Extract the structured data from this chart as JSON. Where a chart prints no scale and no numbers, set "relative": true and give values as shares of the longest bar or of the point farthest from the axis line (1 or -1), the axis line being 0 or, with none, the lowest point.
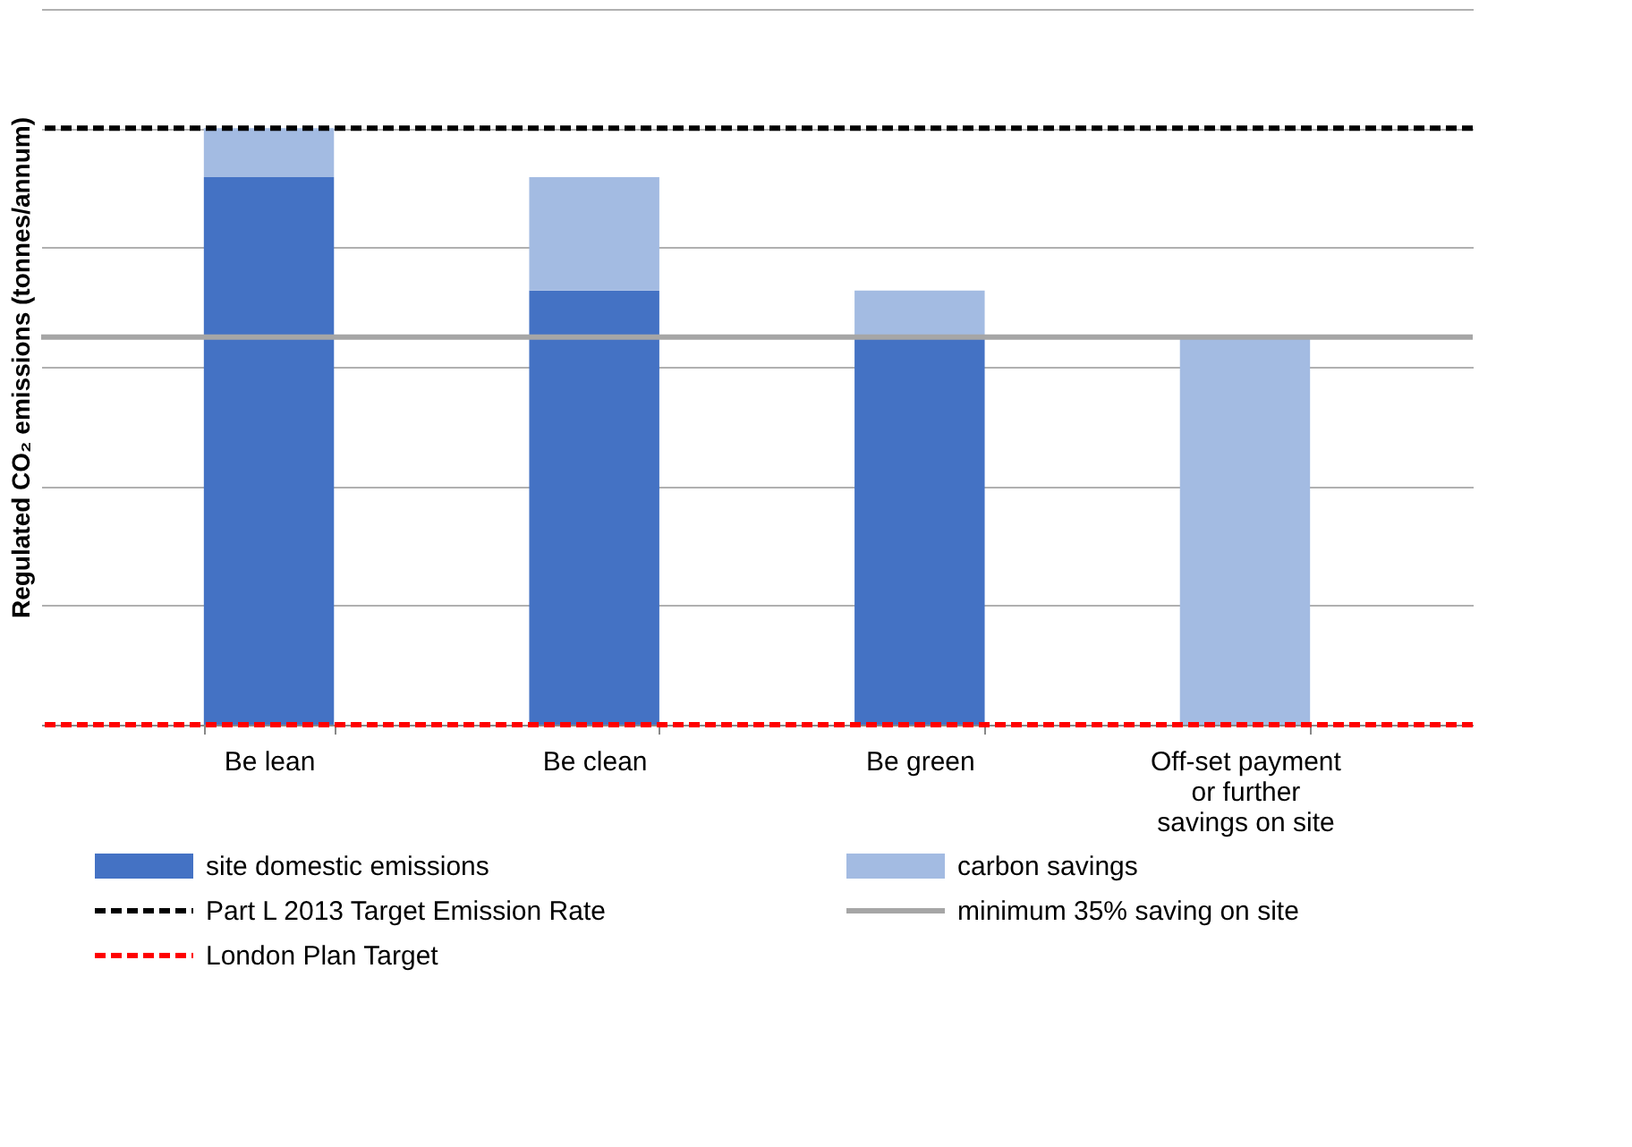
{
  "chart_data": {
    "type": "bar",
    "stacked": true,
    "relative": true,
    "ylabel": "Regulated CO₂ emissions (tonnes/annum)",
    "categories": [
      "Be lean",
      "Be clean",
      "Be green",
      "Off-set payment or further savings on site"
    ],
    "series": [
      {
        "name": "site domestic emissions",
        "color": "#4472c4",
        "values": [
          0.918,
          0.728,
          0.648,
          0
        ]
      },
      {
        "name": "carbon savings",
        "color": "#a3bbe2",
        "values": [
          0.082,
          0.19,
          0.08,
          0.648
        ]
      }
    ],
    "ref_lines": [
      {
        "axis": "y",
        "value": 1.0,
        "label": "Part L 2013 Target Emission Rate",
        "color": "#000000",
        "line_style": "dashed"
      },
      {
        "axis": "y",
        "value": 0.65,
        "label": "minimum 35% saving on site",
        "color": "#a6a6a6",
        "line_style": "solid"
      },
      {
        "axis": "y",
        "value": 0,
        "label": "London Plan Target",
        "color": "#ff0000",
        "line_style": "dashed"
      }
    ],
    "grid": "y",
    "legend": "bottom"
  }
}
